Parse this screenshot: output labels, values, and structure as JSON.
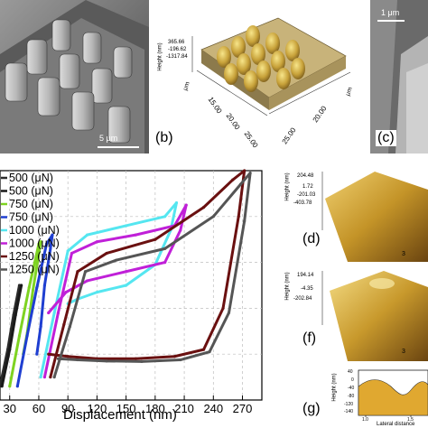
{
  "panel_a": {
    "scale_bar": "5 μm"
  },
  "panel_b": {
    "label": "(b)",
    "z_ticks": [
      "365.66",
      "-196.62",
      "-1317.84"
    ],
    "z_axis": "Height (nm)",
    "y_axis": "μm",
    "x_axis": "μm",
    "x_ticks": [
      "25.00",
      "20.00"
    ],
    "y_ticks": [
      "25.00",
      "20.00",
      "15.00"
    ]
  },
  "panel_c": {
    "label": "(c)",
    "scale_bar": "1 μm"
  },
  "panel_d": {
    "label": "(d)",
    "z_ticks": [
      "204.48",
      "1.72",
      "-201.03",
      "-403.78"
    ],
    "z_axis": "Height (nm)",
    "y_tick": "3"
  },
  "panel_f": {
    "label": "(f)",
    "z_ticks": [
      "194.14",
      "-4.35",
      "-202.84"
    ],
    "z_axis": "Height (nm)",
    "y_tick": "3"
  },
  "panel_g": {
    "label": "(g)",
    "y_label": "Height (nm)",
    "y_ticks": [
      "40",
      "0",
      "-40",
      "-80",
      "-120",
      "-140"
    ],
    "x_ticks": [
      "1.0",
      "1.5"
    ],
    "x_label": "Lateral distance"
  },
  "chart_data": {
    "type": "line",
    "title": "",
    "xlabel": "Displacement (nm)",
    "ylabel": "",
    "xlim": [
      20,
      290
    ],
    "ylim": [
      0,
      1000
    ],
    "x_ticks": [
      30,
      60,
      90,
      120,
      150,
      180,
      210,
      240,
      270
    ],
    "legend_position": "top-left",
    "series": [
      {
        "name": "500 (μN)",
        "color": "#2b2b2b",
        "x": [
          20,
          28,
          34,
          40
        ],
        "y": [
          60,
          220,
          370,
          500
        ]
      },
      {
        "name": "500 (μN)",
        "color": "#1a1a1a",
        "x": [
          22,
          30,
          36,
          42
        ],
        "y": [
          60,
          220,
          370,
          500
        ]
      },
      {
        "name": "750 (μN)",
        "color": "#7ed321",
        "x": [
          30,
          40,
          50,
          60,
          62,
          54,
          48,
          44
        ],
        "y": [
          60,
          280,
          490,
          680,
          690,
          480,
          290,
          200
        ]
      },
      {
        "name": "750 (μN)",
        "color": "#1f3fd1",
        "x": [
          38,
          48,
          58,
          68,
          74,
          72,
          66,
          62,
          58
        ],
        "y": [
          60,
          280,
          490,
          680,
          720,
          660,
          500,
          320,
          200
        ]
      },
      {
        "name": "1000 (μN)",
        "color": "#55e6f0",
        "x": [
          62,
          76,
          90,
          110,
          150,
          190,
          202,
          196,
          180,
          150,
          120,
          100,
          90
        ],
        "y": [
          100,
          380,
          650,
          720,
          760,
          800,
          860,
          740,
          590,
          500,
          470,
          440,
          420
        ]
      },
      {
        "name": "1000 (μN)",
        "color": "#c020d8",
        "x": [
          66,
          80,
          94,
          120,
          160,
          200,
          212,
          206,
          190,
          150,
          110,
          88,
          70
        ],
        "y": [
          100,
          380,
          640,
          690,
          720,
          760,
          850,
          740,
          600,
          560,
          520,
          470,
          380
        ]
      },
      {
        "name": "1250 (μN)",
        "color": "#6a1010",
        "x": [
          72,
          86,
          100,
          130,
          180,
          230,
          260,
          272,
          266,
          250,
          230,
          200,
          160,
          120,
          90,
          70
        ],
        "y": [
          100,
          330,
          560,
          640,
          700,
          840,
          960,
          1000,
          800,
          400,
          220,
          190,
          180,
          180,
          190,
          200
        ]
      },
      {
        "name": "1250 (μN)",
        "color": "#555555",
        "x": [
          76,
          92,
          108,
          140,
          190,
          240,
          268,
          278,
          272,
          256,
          236,
          206,
          166,
          130,
          100,
          80
        ],
        "y": [
          100,
          320,
          560,
          610,
          660,
          800,
          940,
          990,
          780,
          380,
          210,
          175,
          168,
          170,
          175,
          180
        ]
      }
    ]
  }
}
